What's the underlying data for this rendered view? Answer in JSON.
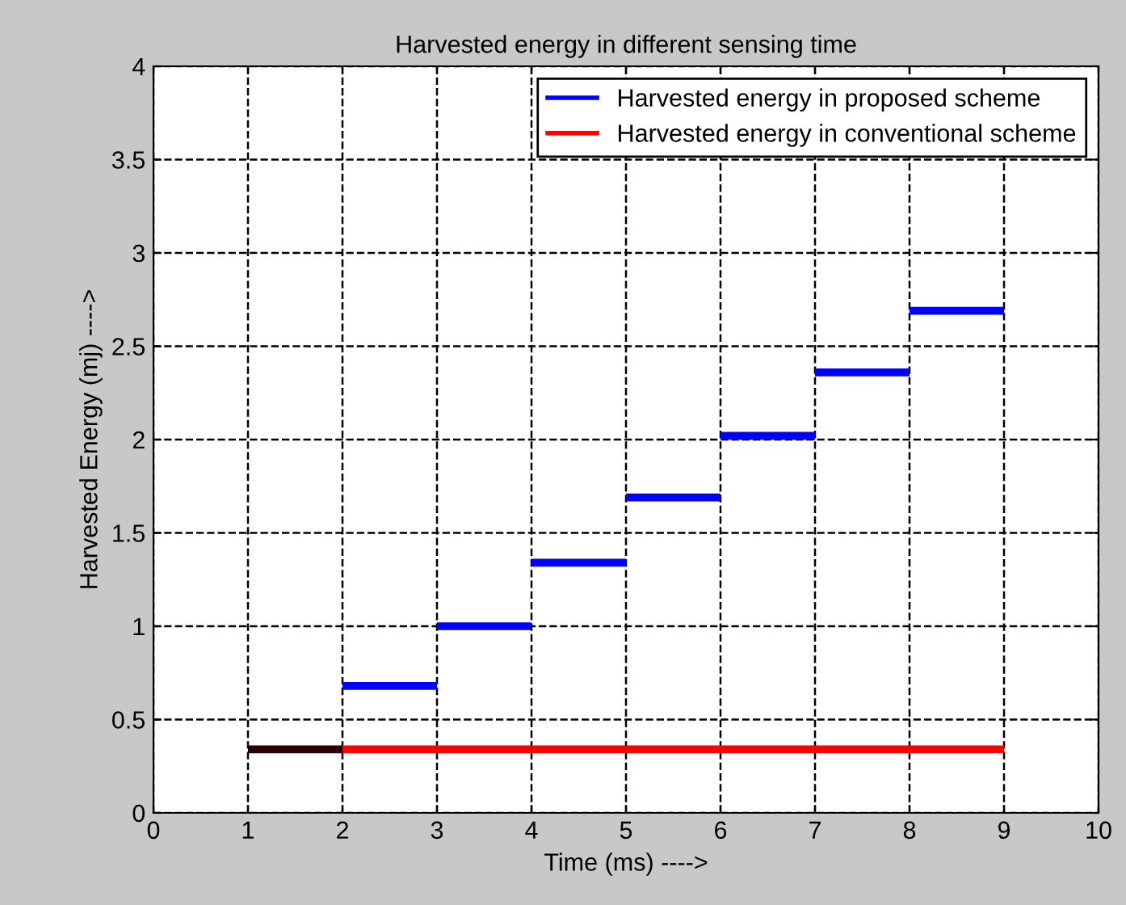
{
  "chart_data": {
    "type": "line",
    "title": "Harvested energy in different sensing time",
    "xlabel": "Time (ms) ---->",
    "ylabel": "Harvested Energy (mj) ---->",
    "xlim": [
      0,
      10
    ],
    "xticks": [
      0,
      1,
      2,
      3,
      4,
      5,
      6,
      7,
      8,
      9,
      10
    ],
    "ylim": [
      0,
      4
    ],
    "yticks": [
      0,
      0.5,
      1,
      1.5,
      2,
      2.5,
      3,
      3.5,
      4
    ],
    "grid": true,
    "legend": "top right",
    "marker": "none",
    "series": [
      {
        "name": "Harvested energy in proposed scheme",
        "color": "#0000ff",
        "x": [
          2,
          3
        ],
        "values": [
          0.68,
          0.68
        ]
      },
      {
        "name": "Harvested energy in conventional scheme",
        "color": "#ff0000",
        "x": [
          2,
          9
        ],
        "values": [
          0.34,
          0.34
        ]
      },
      {
        "color": "#2b0000",
        "x": [
          1,
          2
        ],
        "values": [
          0.34,
          0.34
        ]
      },
      {
        "color": "#0000ff",
        "x": [
          3,
          4
        ],
        "values": [
          1.0,
          1.0
        ]
      },
      {
        "color": "#0000ff",
        "x": [
          4,
          5
        ],
        "values": [
          1.34,
          1.34
        ]
      },
      {
        "color": "#0000ff",
        "x": [
          5,
          6
        ],
        "values": [
          1.69,
          1.69
        ]
      },
      {
        "color": "#0000ff",
        "x": [
          6,
          7
        ],
        "values": [
          2.02,
          2.02
        ]
      },
      {
        "color": "#0000ff",
        "x": [
          7,
          8
        ],
        "values": [
          2.36,
          2.36
        ]
      },
      {
        "color": "#0000ff",
        "x": [
          8,
          9
        ],
        "values": [
          2.69,
          2.69
        ]
      }
    ]
  }
}
